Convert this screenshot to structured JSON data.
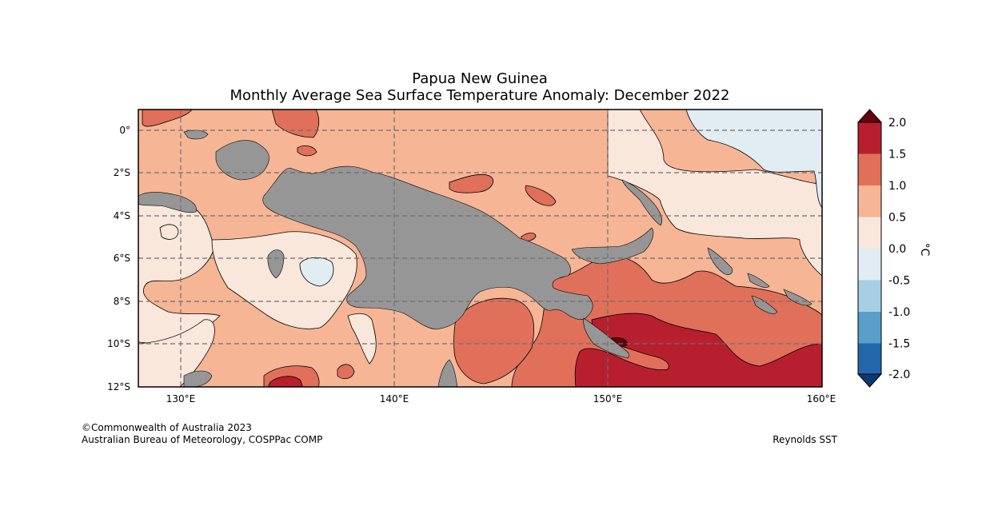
{
  "title": "Papua New Guinea",
  "subtitle": "Monthly Average Sea Surface Temperature Anomaly: December 2022",
  "map": {
    "lat_labels": [
      "0°",
      "2°S",
      "4°S",
      "6°S",
      "8°S",
      "10°S",
      "12°S"
    ],
    "lon_labels": [
      "130°E",
      "140°E",
      "150°E",
      "160°E"
    ],
    "land_color": "#969696"
  },
  "colorbar": {
    "unit": "°C",
    "tick_labels": [
      "2.0",
      "1.5",
      "1.0",
      "0.5",
      "0.0",
      "-0.5",
      "-1.0",
      "-1.5",
      "-2.0"
    ],
    "colors": {
      "above_2.0": "#67000d",
      "1.5_to_2.0": "#b81f2e",
      "1.0_to_1.5": "#e0705a",
      "0.5_to_1.0": "#f6b595",
      "0.0_to_0.5": "#fae7dc",
      "-0.5_to_0.0": "#e1ecf3",
      "-1.0_to_-0.5": "#a7cfe4",
      "-1.5_to_-1.0": "#5a9fcc",
      "-2.0_to_-1.5": "#2466ab",
      "below_-2.0": "#0b3a70"
    }
  },
  "credits": {
    "copyright": "©Commonwealth of Australia 2023",
    "agency": "Australian Bureau of Meteorology, COSPPac COMP",
    "source": "Reynolds SST"
  }
}
